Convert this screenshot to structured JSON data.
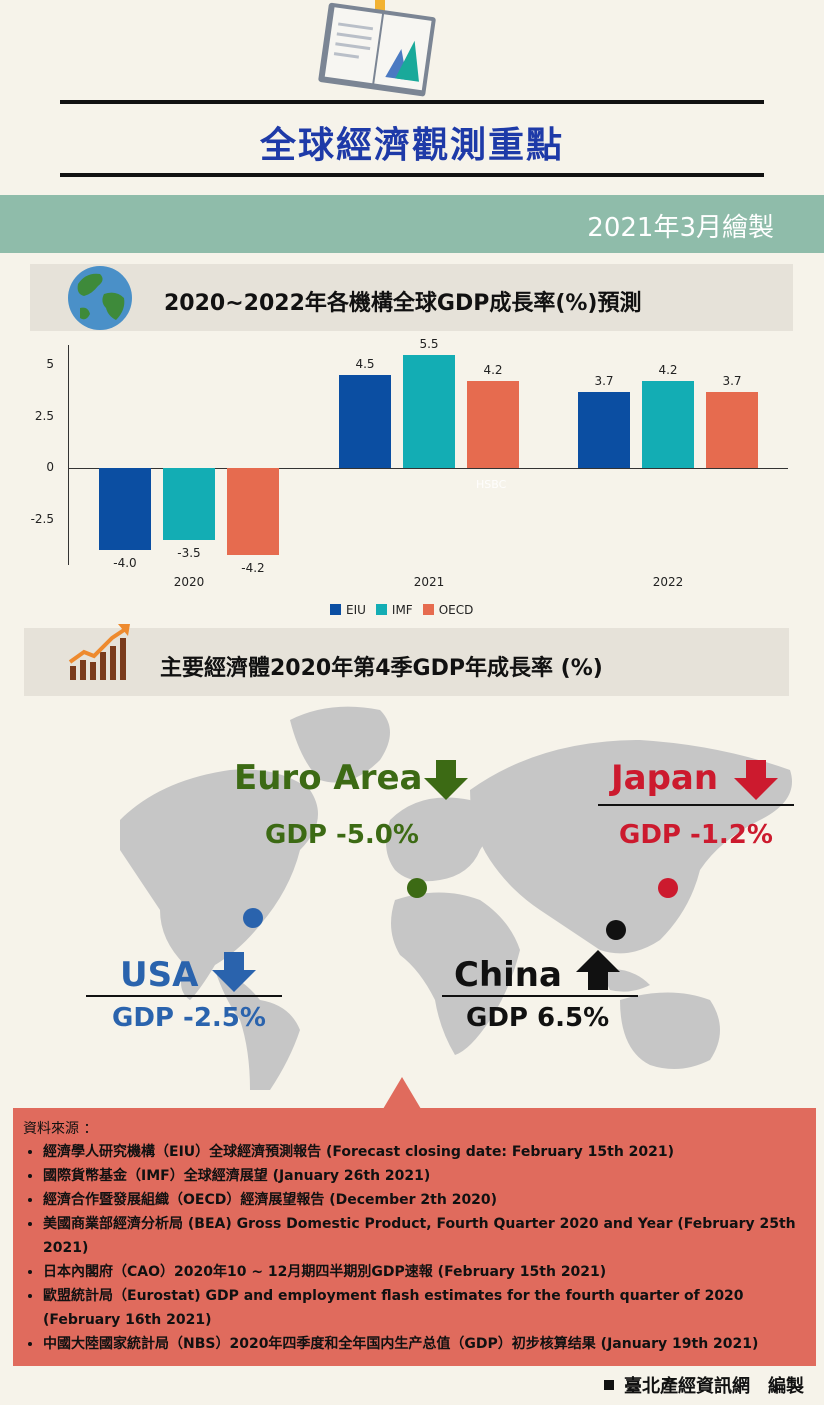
{
  "header": {
    "title": "全球經濟觀測重點",
    "date": "2021年3月繪製"
  },
  "section1": {
    "title": "2020~2022年各機構全球GDP成長率(%)預測",
    "icon": "globe-icon"
  },
  "chart_data": {
    "type": "bar",
    "categories": [
      "2020",
      "2021",
      "2022"
    ],
    "series": [
      {
        "name": "EIU",
        "color": "#0b4ea2",
        "values": [
          -4.0,
          4.5,
          3.7
        ],
        "labels": [
          "-4.0",
          "4.5",
          "3.7"
        ]
      },
      {
        "name": "IMF",
        "color": "#13adb4",
        "values": [
          -3.5,
          5.5,
          4.2
        ],
        "labels": [
          "-3.5",
          "5.5",
          "4.2"
        ]
      },
      {
        "name": "OECD",
        "color": "#e66b4f",
        "values": [
          -4.2,
          4.2,
          3.7
        ],
        "labels": [
          "-4.2",
          "4.2",
          "3.7"
        ]
      }
    ],
    "yticks": [
      "5",
      "2.5",
      "0",
      "-2.5"
    ],
    "ylim": [
      -4.6,
      5.8
    ],
    "legend": "bottom",
    "watermark": "HSBC"
  },
  "section2": {
    "title": "主要經濟體2020年第4季GDP年成長率 (%)",
    "icon": "rising-chart-icon"
  },
  "map": {
    "regions": [
      {
        "name": "Euro Area",
        "gdp": "GDP -5.0%",
        "color": "#3c6a14",
        "trend": "down"
      },
      {
        "name": "Japan",
        "gdp": "GDP -1.2%",
        "color": "#cc1a2e",
        "trend": "down"
      },
      {
        "name": "USA",
        "gdp": "GDP -2.5%",
        "color": "#2a63ad",
        "trend": "down"
      },
      {
        "name": "China",
        "gdp": "GDP 6.5%",
        "color": "#111111",
        "trend": "up"
      }
    ]
  },
  "sources": {
    "title": "資料來源 ：",
    "items": [
      "經濟學人研究機構（EIU）全球經濟預測報告 (Forecast closing date: February 15th 2021)",
      "國際貨幣基金（IMF）全球經濟展望 (January 26th 2021)",
      "經濟合作暨發展組織（OECD）經濟展望報告 (December 2th 2020)",
      "美國商業部經濟分析局 (BEA) Gross Domestic Product, Fourth Quarter 2020 and Year (February 25th 2021)",
      "日本內閣府（CAO）2020年10 ~ 12月期四半期別GDP速報 (February 15th 2021)",
      "歐盟統計局（Eurostat) GDP and employment flash estimates for the fourth quarter of 2020 (February 16th 2021)",
      "中國大陸國家統計局（NBS）2020年四季度和全年国内生产总值（GDP）初步核算结果 (January 19th 2021)"
    ]
  },
  "footer": "臺北產經資訊網　編製"
}
